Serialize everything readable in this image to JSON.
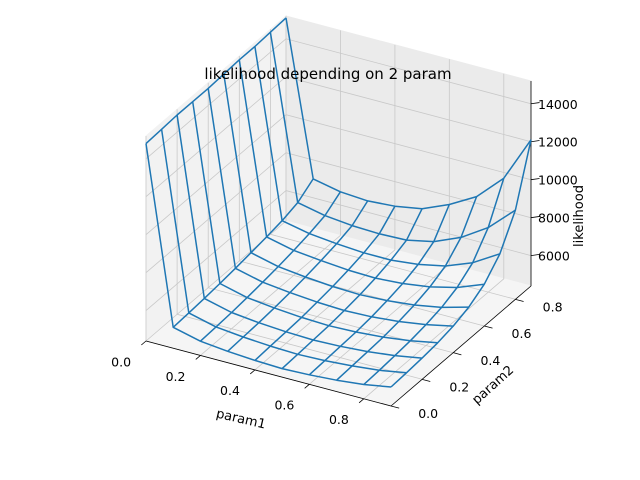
{
  "chart_data": {
    "type": "line",
    "title": "likelihood depending on 2 param",
    "xlabel": "param1",
    "ylabel": "param2",
    "zlabel": "likelihood",
    "x_ticks": [
      "0.0",
      "0.2",
      "0.4",
      "0.6",
      "0.8"
    ],
    "y_ticks": [
      "0.0",
      "0.2",
      "0.4",
      "0.6",
      "0.8"
    ],
    "z_ticks": [
      "6000",
      "8000",
      "10000",
      "12000",
      "14000"
    ],
    "xlim": [
      0,
      0.9
    ],
    "ylim": [
      0,
      0.9
    ],
    "zlim": [
      4400,
      15200
    ],
    "grid": true,
    "param1": [
      0.0,
      0.1,
      0.2,
      0.3,
      0.4,
      0.5,
      0.6,
      0.7,
      0.8,
      0.9
    ],
    "param2": [
      0.0,
      0.1,
      0.2,
      0.3,
      0.4,
      0.5,
      0.6,
      0.7,
      0.8,
      0.9
    ],
    "likelihood": [
      [
        14800,
        14850,
        14900,
        14900,
        14900,
        14950,
        15000,
        15000,
        15050,
        15100
      ],
      [
        5500,
        5560,
        5620,
        5700,
        5800,
        5920,
        6050,
        6200,
        6450,
        7000
      ],
      [
        5150,
        5200,
        5260,
        5340,
        5450,
        5570,
        5720,
        5900,
        6150,
        6700
      ],
      [
        5000,
        5050,
        5100,
        5180,
        5280,
        5400,
        5560,
        5750,
        6000,
        6600
      ],
      [
        4900,
        4950,
        5000,
        5060,
        5160,
        5280,
        5440,
        5650,
        5950,
        6700
      ],
      [
        4850,
        4900,
        4950,
        5000,
        5100,
        5230,
        5400,
        5650,
        6000,
        6950
      ],
      [
        4900,
        4950,
        5000,
        5050,
        5150,
        5300,
        5500,
        5800,
        6300,
        7550
      ],
      [
        5000,
        5050,
        5100,
        5160,
        5280,
        5450,
        5700,
        6100,
        6900,
        8350
      ],
      [
        5150,
        5200,
        5270,
        5350,
        5500,
        5700,
        6050,
        6650,
        7800,
        9700
      ],
      [
        5400,
        5450,
        5520,
        5620,
        5800,
        6100,
        6600,
        7500,
        9100,
        12100
      ]
    ],
    "color": "#1f77b4"
  }
}
